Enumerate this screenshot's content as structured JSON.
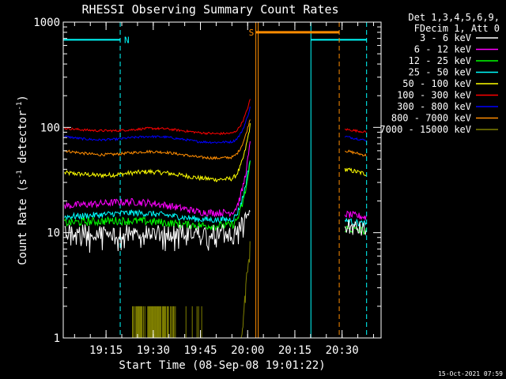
{
  "chart_data": {
    "type": "line",
    "title": "RHESSI Observing Summary Count Rates",
    "xlabel": "Start Time (08-Sep-08 19:01:22)",
    "ylabel_main": "Count Rate (s",
    "ylabel_sup1": "-1",
    "ylabel_mid": " detector",
    "ylabel_sup2": "-1",
    "ylabel_end": ")",
    "y_scale": "log",
    "ylim": [
      1,
      1000
    ],
    "xlim_minutes": [
      0,
      101
    ],
    "x_ticks": [
      {
        "m": 13.6,
        "label": "19:15"
      },
      {
        "m": 28.6,
        "label": "19:30"
      },
      {
        "m": 43.6,
        "label": "19:45"
      },
      {
        "m": 58.6,
        "label": "20:00"
      },
      {
        "m": 73.6,
        "label": "20:15"
      },
      {
        "m": 88.6,
        "label": "20:30"
      }
    ],
    "y_ticks": [
      {
        "v": 1,
        "label": "1"
      },
      {
        "v": 10,
        "label": "10"
      },
      {
        "v": 100,
        "label": "100"
      },
      {
        "v": 1000,
        "label": "1000"
      }
    ],
    "legend_header": [
      "Det 1,3,4,5,6,9,",
      "FDecim 1, Att 0"
    ],
    "legend_placement": "right",
    "series": [
      {
        "name": "3 - 6 keV",
        "color": "#ffffff",
        "levels": [
          10,
          10,
          10,
          10,
          10,
          10,
          10,
          10,
          10,
          10,
          10
        ],
        "post_levels": [
          11.5,
          10.5
        ]
      },
      {
        "name": "6 - 12 keV",
        "color": "#ff00ff",
        "levels": [
          18,
          18.4,
          18.8,
          19.4,
          19.6,
          19.2,
          18.2,
          17,
          15.7,
          15.4,
          15.6
        ],
        "post_levels": [
          15,
          14
        ]
      },
      {
        "name": "12 - 25 keV",
        "color": "#00ff00",
        "levels": [
          12.4,
          12.6,
          12.8,
          13,
          12.9,
          12.8,
          12.4,
          12,
          11.7,
          11.6,
          11.8
        ],
        "post_levels": [
          11,
          10.3
        ]
      },
      {
        "name": "25 - 50 keV",
        "color": "#00ffff",
        "levels": [
          14.2,
          14.4,
          14.7,
          15.2,
          15.4,
          15.2,
          14.7,
          14,
          13.4,
          13.2,
          13.4
        ],
        "post_levels": [
          13,
          12
        ]
      },
      {
        "name": "50 - 100 keV",
        "color": "#ffff00",
        "levels": [
          37,
          36,
          35,
          35.5,
          37,
          38,
          37,
          35,
          33,
          32,
          32.5
        ],
        "post_levels": [
          40,
          36
        ]
      },
      {
        "name": "100 - 300 keV",
        "color": "#ff0000",
        "levels": [
          98,
          95,
          93,
          93,
          95,
          98,
          97,
          93,
          89,
          87,
          88
        ],
        "post_levels": [
          96,
          90
        ]
      },
      {
        "name": "300 - 800 keV",
        "color": "#0000ff",
        "levels": [
          82,
          78,
          76,
          77,
          80,
          82,
          81,
          77,
          73,
          72,
          73
        ],
        "post_levels": [
          82,
          75
        ]
      },
      {
        "name": "800 - 7000 keV",
        "color": "#ff8c00",
        "levels": [
          60,
          57,
          55,
          55.5,
          57.5,
          59,
          58,
          55,
          52,
          51,
          52
        ],
        "post_levels": [
          60,
          54
        ]
      },
      {
        "name": "7000 - 15000 keV",
        "color": "#808000",
        "levels": [],
        "post_levels": []
      }
    ],
    "data_gaps_minutes": [
      [
        59.5,
        89.3
      ]
    ],
    "rise_end_minute": 59.4,
    "attenuator_bursts": {
      "series_index": 8,
      "start_minute": 22,
      "end_minute": 36,
      "level": 2,
      "floor": 1
    },
    "markers": [
      {
        "kind": "night",
        "label": "N",
        "color": "#00ffff",
        "start_minute": 0,
        "end_minute": 18.1,
        "level": 680
      },
      {
        "kind": "night",
        "label": "",
        "color": "#00ffff",
        "start_minute": 78.7,
        "end_minute": 96.4,
        "level": 680
      },
      {
        "kind": "saa",
        "label": "S",
        "color": "#ff8c00",
        "start_minute": 61.2,
        "end_minute": 87.7,
        "level": 800
      }
    ],
    "timestamp": "15-Oct-2021 07:59"
  }
}
